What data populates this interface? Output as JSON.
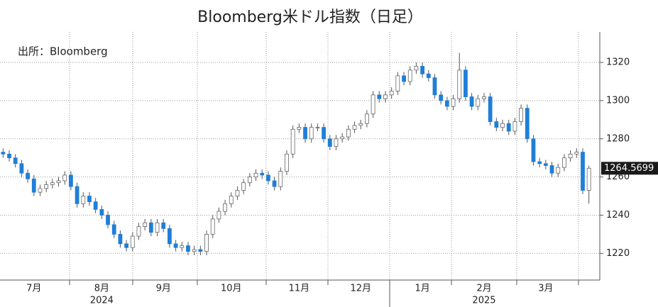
{
  "chart_data": {
    "type": "candlestick",
    "title": "Bloomberg米ドル指数（日足）",
    "annotation": "出所：Bloomberg",
    "categories": [
      null,
      null,
      null,
      null,
      null,
      "7月",
      null,
      null,
      null,
      null,
      null,
      null,
      null,
      null,
      null,
      null,
      "8月",
      null,
      null,
      null,
      null,
      null,
      null,
      null,
      null,
      null,
      "9月",
      null,
      null,
      null,
      null,
      null,
      null,
      null,
      null,
      null,
      null,
      "10月",
      null,
      null,
      null,
      null,
      null,
      null,
      null,
      null,
      null,
      null,
      "11月",
      null,
      null,
      null,
      null,
      null,
      null,
      null,
      null,
      null,
      "12月",
      null,
      null,
      null,
      null,
      null,
      null,
      null,
      null,
      null,
      "1月",
      null,
      null,
      null,
      null,
      null,
      null,
      null,
      null,
      null,
      "2月",
      null,
      null,
      null,
      null,
      null,
      null,
      null,
      null,
      null,
      "3月",
      null,
      null,
      null,
      null,
      null,
      null,
      null
    ],
    "x_sublabels": [
      null,
      null,
      null,
      null,
      null,
      null,
      null,
      null,
      null,
      null,
      null,
      null,
      null,
      null,
      null,
      null,
      "2024",
      null,
      null,
      null,
      null,
      null,
      null,
      null,
      null,
      null,
      null,
      null,
      null,
      null,
      null,
      null,
      null,
      null,
      null,
      null,
      null,
      null,
      null,
      null,
      null,
      null,
      null,
      null,
      null,
      null,
      null,
      null,
      null,
      null,
      null,
      null,
      null,
      null,
      null,
      null,
      null,
      null,
      null,
      null,
      null,
      null,
      null,
      null,
      null,
      null,
      null,
      null,
      null,
      null,
      null,
      null,
      null,
      null,
      null,
      null,
      null,
      null,
      "2025",
      null,
      null,
      null,
      null,
      null,
      null,
      null,
      null,
      null,
      null,
      null,
      null,
      null,
      null,
      null,
      null,
      null
    ],
    "open": [
      1273,
      1272,
      1270,
      1267,
      1262,
      1259,
      1252,
      1254,
      1256,
      1257,
      1258,
      1261,
      1255,
      1246,
      1250,
      1247,
      1243,
      1240,
      1235,
      1230,
      1225,
      1223,
      1229,
      1234,
      1236,
      1231,
      1236,
      1233,
      1225,
      1223,
      1224,
      1221,
      1222,
      1221,
      1230,
      1238,
      1242,
      1246,
      1250,
      1253,
      1257,
      1260,
      1262,
      1261,
      1258,
      1255,
      1263,
      1272,
      1285,
      1286,
      1280,
      1286,
      1286,
      1280,
      1276,
      1280,
      1281,
      1285,
      1287,
      1288,
      1293,
      1303,
      1301,
      1303,
      1305,
      1313,
      1310,
      1316,
      1318,
      1314,
      1312,
      1303,
      1300,
      1297,
      1301,
      1316,
      1302,
      1297,
      1301,
      1302,
      1289,
      1286,
      1288,
      1284,
      1289,
      1296,
      1280,
      1268,
      1267,
      1266,
      1262,
      1265,
      1270,
      1272,
      1273,
      1253
    ],
    "high": [
      1275,
      1274,
      1272,
      1269,
      1264,
      1261,
      1256,
      1258,
      1259,
      1260,
      1263,
      1263,
      1257,
      1252,
      1252,
      1249,
      1245,
      1242,
      1237,
      1232,
      1227,
      1231,
      1236,
      1238,
      1238,
      1238,
      1238,
      1235,
      1227,
      1226,
      1226,
      1224,
      1224,
      1232,
      1240,
      1244,
      1248,
      1252,
      1255,
      1259,
      1262,
      1264,
      1264,
      1263,
      1260,
      1265,
      1274,
      1287,
      1288,
      1288,
      1288,
      1288,
      1288,
      1282,
      1282,
      1283,
      1287,
      1289,
      1290,
      1295,
      1305,
      1305,
      1305,
      1307,
      1315,
      1315,
      1318,
      1320,
      1320,
      1316,
      1314,
      1305,
      1302,
      1303,
      1325,
      1318,
      1304,
      1303,
      1304,
      1304,
      1291,
      1290,
      1290,
      1291,
      1298,
      1298,
      1282,
      1270,
      1269,
      1268,
      1267,
      1272,
      1274,
      1275,
      1275,
      1266
    ],
    "low": [
      1270,
      1268,
      1265,
      1260,
      1257,
      1250,
      1250,
      1252,
      1254,
      1255,
      1256,
      1253,
      1244,
      1244,
      1245,
      1241,
      1238,
      1233,
      1228,
      1223,
      1221,
      1221,
      1227,
      1232,
      1229,
      1229,
      1231,
      1223,
      1221,
      1221,
      1219,
      1219,
      1219,
      1219,
      1228,
      1236,
      1240,
      1244,
      1248,
      1251,
      1255,
      1258,
      1259,
      1256,
      1253,
      1253,
      1261,
      1270,
      1283,
      1278,
      1278,
      1284,
      1278,
      1274,
      1274,
      1278,
      1279,
      1283,
      1285,
      1286,
      1291,
      1299,
      1299,
      1301,
      1303,
      1308,
      1308,
      1314,
      1312,
      1310,
      1301,
      1298,
      1295,
      1295,
      1299,
      1300,
      1295,
      1295,
      1299,
      1287,
      1284,
      1284,
      1282,
      1282,
      1287,
      1278,
      1266,
      1265,
      1264,
      1260,
      1260,
      1263,
      1268,
      1270,
      1251,
      1246
    ],
    "close": [
      1272,
      1270,
      1267,
      1262,
      1259,
      1252,
      1254,
      1256,
      1257,
      1258,
      1261,
      1255,
      1246,
      1250,
      1247,
      1243,
      1240,
      1235,
      1230,
      1225,
      1223,
      1229,
      1234,
      1236,
      1231,
      1236,
      1233,
      1225,
      1223,
      1224,
      1221,
      1222,
      1221,
      1230,
      1238,
      1242,
      1246,
      1250,
      1253,
      1257,
      1260,
      1262,
      1261,
      1258,
      1255,
      1263,
      1272,
      1285,
      1286,
      1280,
      1286,
      1286,
      1280,
      1276,
      1280,
      1281,
      1285,
      1287,
      1288,
      1293,
      1303,
      1301,
      1303,
      1305,
      1313,
      1310,
      1316,
      1318,
      1314,
      1312,
      1303,
      1300,
      1297,
      1301,
      1316,
      1302,
      1297,
      1301,
      1302,
      1289,
      1286,
      1288,
      1284,
      1289,
      1296,
      1280,
      1268,
      1267,
      1266,
      1262,
      1265,
      1270,
      1272,
      1273,
      1253,
      1264.5699
    ],
    "up_color": "#ffffff",
    "down_color": "#1f7fd8",
    "ylim": [
      1206,
      1336
    ],
    "yticks": [
      1220,
      1240,
      1260,
      1280,
      1300,
      1320
    ],
    "grid": true
  }
}
